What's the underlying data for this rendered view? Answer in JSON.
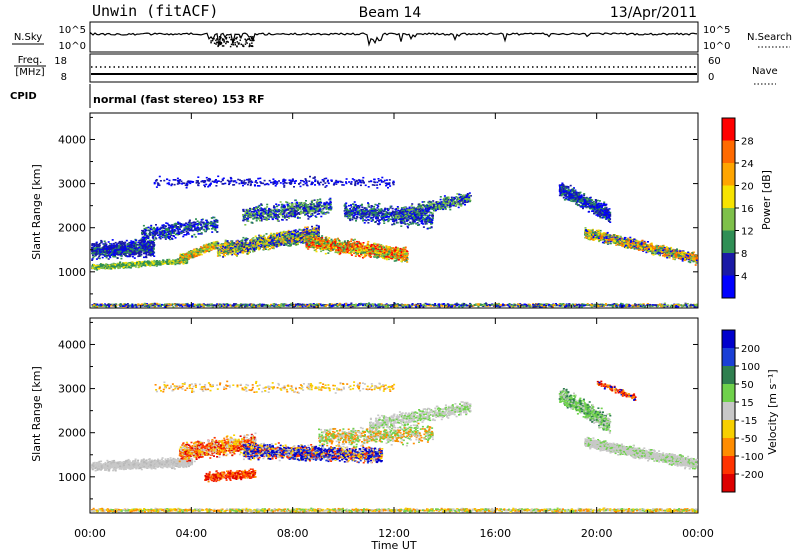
{
  "header": {
    "station": "Unwin (fitACF)",
    "beam": "Beam 14",
    "date": "13/Apr/2011"
  },
  "noise_panel": {
    "left_label": "N.Sky",
    "right_label": "N.Search",
    "ticks": [
      "10^5",
      "10^0"
    ]
  },
  "freq_panel": {
    "left_label_1": "Freq.",
    "left_label_2": "[MHz]",
    "left_ticks": [
      "18",
      "8"
    ],
    "right_label": "Nave",
    "right_ticks": [
      "60",
      "0"
    ],
    "cpid_label": "CPID",
    "cpid_text": "normal (fast stereo) 153 RF"
  },
  "chart_data": [
    {
      "type": "heatmap",
      "title": "",
      "ylabel": "Slant Range [km]",
      "ylim": [
        180,
        4600
      ],
      "yticks": [
        "1000",
        "2000",
        "3000",
        "4000"
      ],
      "xlabel": "Time UT",
      "xlim": [
        "00:00",
        "24:00"
      ],
      "xticks": [
        "00:00",
        "04:00",
        "08:00",
        "12:00",
        "16:00",
        "20:00",
        "00:00"
      ],
      "colorbar_label": "Power [dB]",
      "colorbar_ticks": [
        "28",
        "24",
        "20",
        "16",
        "12",
        "8",
        "4"
      ],
      "colorbar_colors": [
        "#ff0000",
        "#ff6a00",
        "#ffa500",
        "#f7e300",
        "#7ec04a",
        "#2f8f55",
        "#1a1aa6",
        "#0000ff"
      ]
    },
    {
      "type": "heatmap",
      "title": "",
      "ylabel": "Slant Range [km]",
      "ylim": [
        180,
        4600
      ],
      "yticks": [
        "1000",
        "2000",
        "3000",
        "4000"
      ],
      "xlabel": "Time UT",
      "xlim": [
        "00:00",
        "24:00"
      ],
      "xticks": [
        "00:00",
        "04:00",
        "08:00",
        "12:00",
        "16:00",
        "20:00",
        "00:00"
      ],
      "colorbar_label": "Velocity [m s⁻¹]",
      "colorbar_ticks": [
        "200",
        "100",
        "50",
        "15",
        "-15",
        "-50",
        "-100",
        "-200"
      ],
      "colorbar_colors": [
        "#0000cc",
        "#1a3fd6",
        "#2f7f4f",
        "#6fd14b",
        "#c8c8c8",
        "#f7d000",
        "#ff8c00",
        "#ff3300",
        "#dd0000"
      ]
    }
  ],
  "time_axis": {
    "label": "Time UT",
    "ticks": [
      "00:00",
      "04:00",
      "08:00",
      "12:00",
      "16:00",
      "20:00",
      "00:00"
    ]
  }
}
